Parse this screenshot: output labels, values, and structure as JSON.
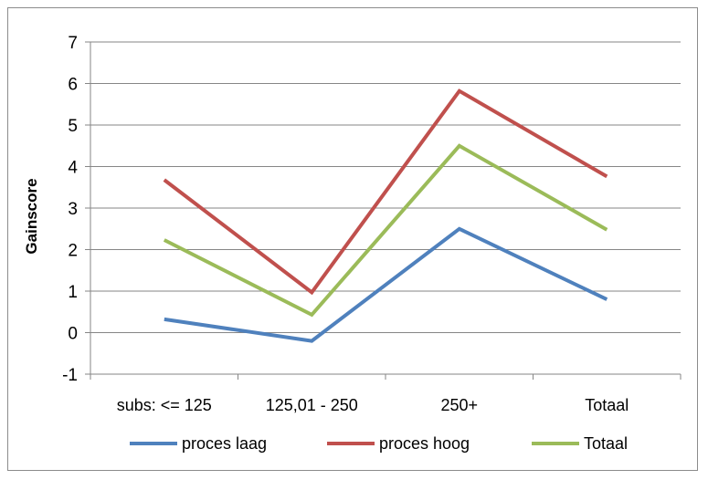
{
  "chart_data": {
    "type": "line",
    "ylabel": "Gainscore",
    "xlabel": "",
    "categories": [
      "subs: <= 125",
      "125,01 - 250",
      "250+",
      "Totaal"
    ],
    "ylim": [
      -1,
      7
    ],
    "yticks": [
      -1,
      0,
      1,
      2,
      3,
      4,
      5,
      6,
      7
    ],
    "grid": "horizontal",
    "legend": "bottom",
    "series": [
      {
        "name": "proces laag",
        "color": "#4f81bd",
        "values": [
          0.32,
          -0.2,
          2.5,
          0.8
        ]
      },
      {
        "name": "proces hoog",
        "color": "#c0504d",
        "values": [
          3.68,
          0.97,
          5.82,
          3.76
        ]
      },
      {
        "name": "Totaal",
        "color": "#9bbb59",
        "values": [
          2.23,
          0.43,
          4.5,
          2.48
        ]
      }
    ]
  }
}
